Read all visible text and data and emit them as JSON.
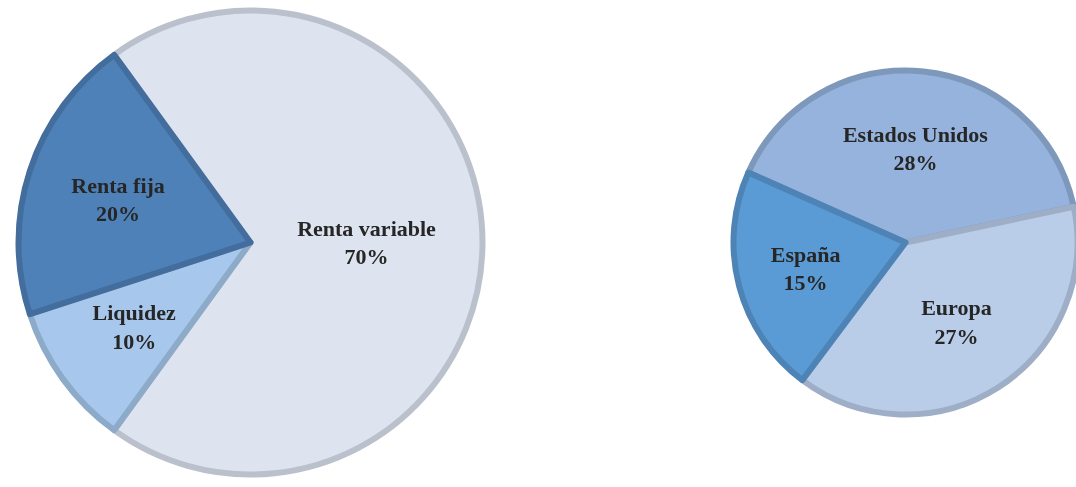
{
  "chart_data": [
    {
      "type": "pie",
      "categories": [
        "Renta variable",
        "Liquidez",
        "Renta fija"
      ],
      "values": [
        70,
        10,
        20
      ],
      "colors": [
        "#dde4f0",
        "#a7c8ec",
        "#4f81b9"
      ],
      "value_labels": [
        "70%",
        "10%",
        "20%"
      ]
    },
    {
      "type": "pie",
      "categories": [
        "Estados Unidos",
        "Europa",
        "España"
      ],
      "values": [
        28,
        27,
        15
      ],
      "colors": [
        "#95b3dc",
        "#b9cde9",
        "#5b9bd5"
      ],
      "value_labels": [
        "28%",
        "27%",
        "15%"
      ]
    }
  ]
}
